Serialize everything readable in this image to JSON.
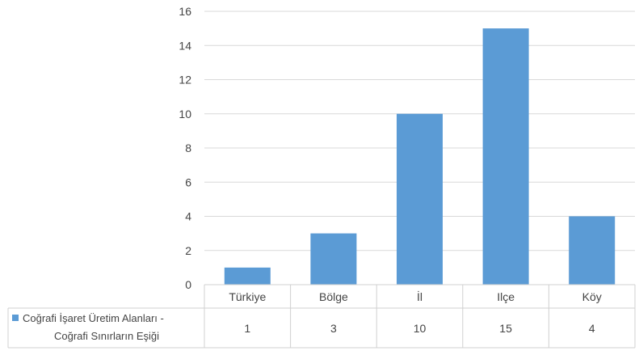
{
  "chart_data": {
    "type": "bar",
    "categories": [
      "Türkiye",
      "Bölge",
      "İl",
      "Ilçe",
      "Köy"
    ],
    "series": [
      {
        "name": "Coğrafi İşaret Üretim Alanları - Coğrafi Sınırların Eşiği",
        "name_lines": [
          "Coğrafi İşaret Üretim Alanları -",
          "Coğrafi Sınırların Eşiği"
        ],
        "values": [
          1,
          3,
          10,
          15,
          4
        ],
        "color": "#5b9bd5"
      }
    ],
    "y_ticks": [
      "0",
      "2",
      "4",
      "6",
      "8",
      "10",
      "12",
      "14",
      "16"
    ],
    "ylim": [
      0,
      16
    ],
    "grid": true,
    "legend": "data-table-left",
    "data_table": true
  }
}
